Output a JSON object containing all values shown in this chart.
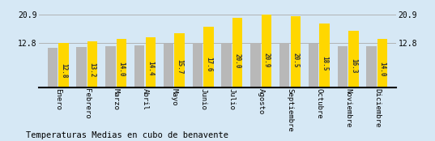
{
  "categories": [
    "Enero",
    "Febrero",
    "Marzo",
    "Abril",
    "Mayo",
    "Junio",
    "Julio",
    "Agosto",
    "Septiembre",
    "Octubre",
    "Noviembre",
    "Diciembre"
  ],
  "values": [
    12.8,
    13.2,
    14.0,
    14.4,
    15.7,
    17.6,
    20.0,
    20.9,
    20.5,
    18.5,
    16.3,
    14.0
  ],
  "gray_values": [
    11.5,
    11.7,
    12.0,
    12.1,
    12.5,
    12.8,
    12.8,
    12.8,
    12.8,
    12.5,
    12.0,
    11.8
  ],
  "bar_color_yellow": "#FFD700",
  "bar_color_gray": "#B8B8B8",
  "background_color": "#D6E8F5",
  "title": "Temperaturas Medias en cubo de benavente",
  "yticks": [
    12.8,
    20.9
  ],
  "ylim_min": 0.0,
  "ylim_max": 24.0,
  "value_fontsize": 5.5,
  "title_fontsize": 7.5,
  "category_fontsize": 6.5
}
